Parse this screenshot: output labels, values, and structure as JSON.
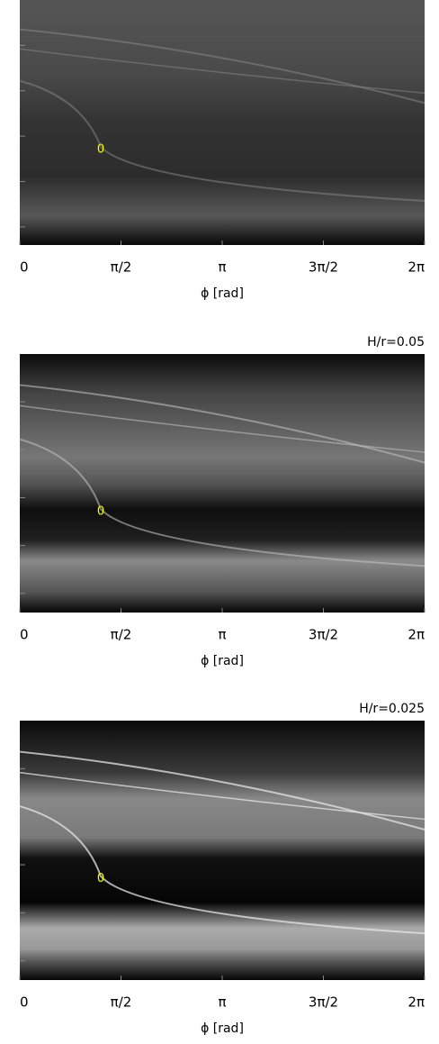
{
  "chart_data": [
    {
      "type": "heatmap",
      "xlabel": "ϕ [rad]",
      "annotation": "0",
      "xlim": [
        0,
        6.2832
      ],
      "xticks": [
        0,
        {
          "value": 1.5708,
          "label": "π/2"
        },
        {
          "value": 3.1416,
          "label": "π"
        },
        {
          "value": 4.7124,
          "label": "3π/2"
        },
        {
          "value": 6.2832,
          "label": "2π"
        }
      ]
    },
    {
      "type": "heatmap",
      "title": "H/r=0.05",
      "xlabel": "ϕ [rad]",
      "annotation": "0",
      "xlim": [
        0,
        6.2832
      ],
      "xticks": [
        0,
        {
          "value": 1.5708,
          "label": "π/2"
        },
        {
          "value": 3.1416,
          "label": "π"
        },
        {
          "value": 4.7124,
          "label": "3π/2"
        },
        {
          "value": 6.2832,
          "label": "2π"
        }
      ]
    },
    {
      "type": "heatmap",
      "title": "H/r=0.025",
      "xlabel": "ϕ [rad]",
      "annotation": "0",
      "xlim": [
        0,
        6.2832
      ],
      "xticks": [
        0,
        {
          "value": 1.5708,
          "label": "π/2"
        },
        {
          "value": 3.1416,
          "label": "π"
        },
        {
          "value": 4.7124,
          "label": "3π/2"
        },
        {
          "value": 6.2832,
          "label": "2π"
        }
      ]
    }
  ]
}
